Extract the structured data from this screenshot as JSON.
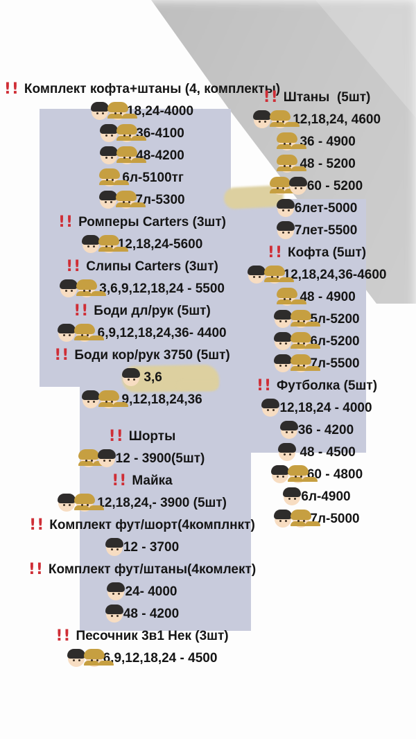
{
  "colors": {
    "accent_red": "#cf2e36",
    "panel_lavender": "#c8cbdc",
    "blob_beige": "#ddd0a0",
    "shadow_gray": "#c6c6c6",
    "text": "#151515"
  },
  "icon_glyphs": {
    "bangbang": "!!"
  },
  "left_column": {
    "rows": [
      {
        "icons": [
          "bangbang"
        ],
        "text": "Комплект кофта+штаны (4, комплекты)"
      },
      {
        "icons": [
          "boy",
          "girl"
        ],
        "text": "18,24-4000"
      },
      {
        "icons": [
          "boy",
          "girl"
        ],
        "text": "36-4100"
      },
      {
        "icons": [
          "boy",
          "girl"
        ],
        "text": "48-4200"
      },
      {
        "icons": [
          "girl"
        ],
        "text": " 6л-5100тг"
      },
      {
        "icons": [
          "boy",
          "girl"
        ],
        "text": "7л-5300"
      },
      {
        "icons": [
          "bangbang"
        ],
        "text": "Ромперы Carters (3шт)"
      },
      {
        "icons": [
          "boy",
          "girl"
        ],
        "text": "12,18,24-5600"
      },
      {
        "icons": [
          "bangbang"
        ],
        "text": "Слипы Carters (3шт)"
      },
      {
        "icons": [
          "boy",
          "girl"
        ],
        "text": " 3,6,9,12,18,24 - 5500"
      },
      {
        "icons": [
          "bangbang"
        ],
        "text": "Боди дл/рук (5шт)"
      },
      {
        "icons": [
          "boy",
          "girl"
        ],
        "text": " 6,9,12,18,24,36- 4400"
      },
      {
        "icons": [
          "bangbang"
        ],
        "text": "Боди кор/рук 3750 (5шт)"
      },
      {
        "icons": [
          "boy"
        ],
        "text": " 3,6"
      },
      {
        "icons": [
          "boy",
          "girl"
        ],
        "text": " 9,12,18,24,36"
      },
      {
        "gap": true
      },
      {
        "icons": [
          "bangbang"
        ],
        "text": "Шорты"
      },
      {
        "icons": [
          "girl",
          "boy"
        ],
        "text": "12 - 3900(5шт)"
      },
      {
        "icons": [
          "bangbang"
        ],
        "text": "Майка"
      },
      {
        "icons": [
          "boy",
          "girl"
        ],
        "text": " 12,18,24,- 3900 (5шт)"
      },
      {
        "icons": [
          "bangbang"
        ],
        "text": "Комплект фут/шорт(4комплнкт)"
      },
      {
        "icons": [
          "boy"
        ],
        "text": "12 - 3700"
      },
      {
        "icons": [
          "bangbang"
        ],
        "text": "Комплект фут/штаны(4комлект)"
      },
      {
        "icons": [
          "boy"
        ],
        "text": "24- 4000"
      },
      {
        "icons": [
          "boy"
        ],
        "text": "48 - 4200"
      },
      {
        "icons": [
          "bangbang"
        ],
        "text": "Песочник 3в1 Нек (3шт)"
      },
      {
        "icons": [
          "boy",
          "girl"
        ],
        "text": "6,9,12,18,24 - 4500"
      }
    ]
  },
  "right_column": {
    "rows": [
      {
        "icons": [
          "bangbang"
        ],
        "text": "Штаны  (5шт)"
      },
      {
        "icons": [
          "boy",
          "girl"
        ],
        "text": " 12,18,24, 4600"
      },
      {
        "icons": [
          "girl"
        ],
        "text": " 36 - 4900"
      },
      {
        "icons": [
          "girl"
        ],
        "text": " 48 - 5200"
      },
      {
        "icons": [
          "girl",
          "boy"
        ],
        "text": "60 - 5200"
      },
      {
        "icons": [
          "boy"
        ],
        "text": "6лет-5000"
      },
      {
        "icons": [
          "boy"
        ],
        "text": "7лет-5500"
      },
      {
        "icons": [
          "bangbang"
        ],
        "text": "Кофта (5шт)"
      },
      {
        "icons": [
          "boy",
          "girl"
        ],
        "text": "12,18,24,36-4600"
      },
      {
        "icons": [
          "girl"
        ],
        "text": " 48 - 4900"
      },
      {
        "icons": [
          "boy",
          "girl"
        ],
        "text": "5л-5200"
      },
      {
        "icons": [
          "boy",
          "girl"
        ],
        "text": "6л-5200"
      },
      {
        "icons": [
          "boy",
          "girl"
        ],
        "text": "7л-5500"
      },
      {
        "icons": [
          "bangbang"
        ],
        "text": "Футболка (5шт)"
      },
      {
        "icons": [
          "boy"
        ],
        "text": "12,18,24 - 4000"
      },
      {
        "icons": [
          "boy"
        ],
        "text": "36 - 4200"
      },
      {
        "icons": [
          "boy"
        ],
        "text": " 48 - 4500"
      },
      {
        "icons": [
          "boy",
          "girl"
        ],
        "text": "60 - 4800"
      },
      {
        "icons": [
          "boy"
        ],
        "text": "6л-4900"
      },
      {
        "icons": [
          "boy",
          "girl"
        ],
        "text": "7л-5000"
      }
    ]
  }
}
